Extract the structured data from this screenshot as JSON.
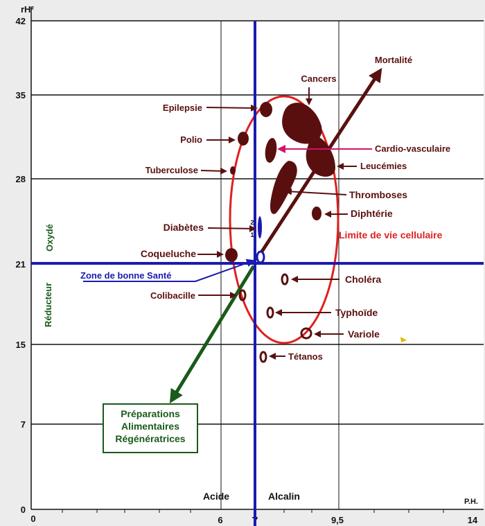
{
  "y_axis": {
    "label": "rH²",
    "ticks": [
      "42",
      "35",
      "28",
      "21",
      "15",
      "7",
      "0"
    ]
  },
  "x_axis": {
    "label": "P.H.",
    "ticks": [
      "0",
      "6",
      "7",
      "9,5",
      "14"
    ]
  },
  "zones": {
    "oxyde": "Oxydé",
    "reducteur": "Réducteur",
    "acide": "Acide",
    "alcalin": "Alcalin"
  },
  "arrow_mortalite": "Mortalité",
  "cell_limit_label": "Limite de vie cellulaire",
  "good_health_label": "Zone de bonne Santé",
  "cell_marker_numbers": [
    "2",
    "1"
  ],
  "preparations": [
    "Préparations",
    "Alimentaires",
    "Régénératrices"
  ],
  "diseases": {
    "cancers": "Cancers",
    "epilepsie": "Epilepsie",
    "polio": "Polio",
    "tuberculose": "Tuberculose",
    "diabetes": "Diabètes",
    "coqueluche": "Coqueluche",
    "colibacille": "Colibacille",
    "cardio": "Cardio-vasculaire",
    "leucemies": "Leucémies",
    "thromboses": "Thromboses",
    "diphterie": "Diphtérie",
    "cholera": "Choléra",
    "typhoide": "Typhoïde",
    "variole": "Variole",
    "tetanos": "Tétanos"
  },
  "colors": {
    "blob": "#5a0f0f",
    "label": "#5a1010",
    "ellipse": "#e02020",
    "axis": "#1a1ab0",
    "green": "#1a5a1a",
    "magenta": "#d0156a"
  }
}
